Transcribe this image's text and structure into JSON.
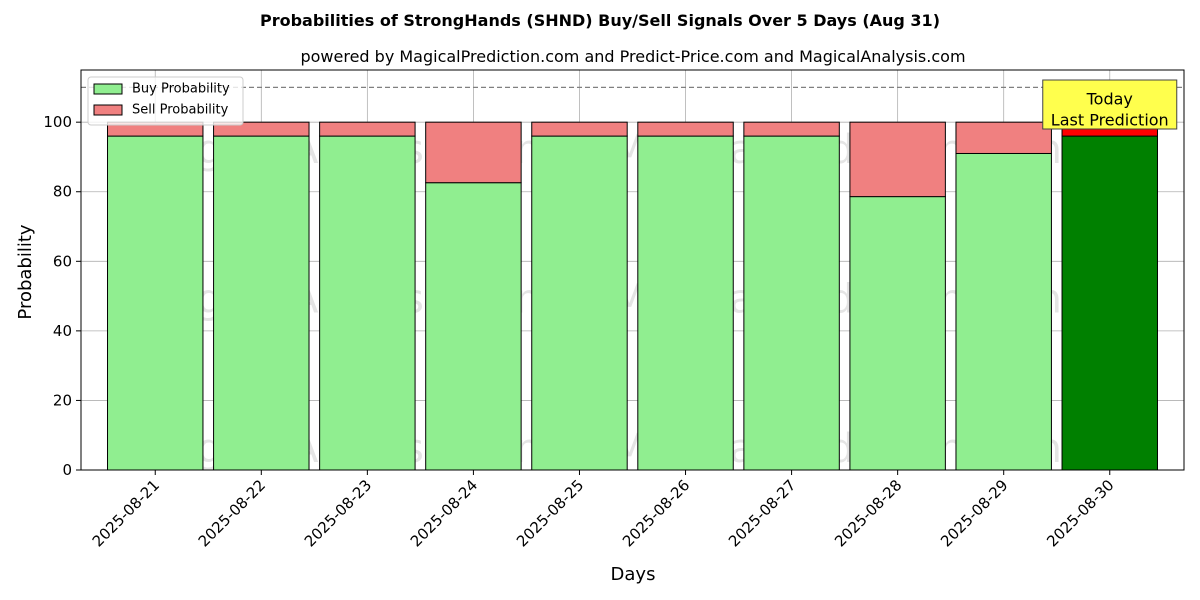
{
  "chart_data": {
    "type": "bar",
    "stacked": true,
    "title": "Probabilities of StrongHands (SHND) Buy/Sell Signals Over 5 Days (Aug 31)",
    "subtitle": "powered by MagicalPrediction.com and Predict-Price.com and MagicalAnalysis.com",
    "xlabel": "Days",
    "ylabel": "Probability",
    "ylim": [
      0,
      115
    ],
    "yticks": [
      0,
      20,
      40,
      60,
      80,
      100
    ],
    "grid": true,
    "legend_position": "top-left",
    "reference_line": 110,
    "categories": [
      "2025-08-21",
      "2025-08-22",
      "2025-08-23",
      "2025-08-24",
      "2025-08-25",
      "2025-08-26",
      "2025-08-27",
      "2025-08-28",
      "2025-08-29",
      "2025-08-30"
    ],
    "series": [
      {
        "name": "Buy Probability",
        "color": "#90ee90",
        "highlight_color": "#008000",
        "values": [
          96,
          96,
          96,
          82.6,
          96,
          96,
          96,
          78.6,
          91,
          96
        ]
      },
      {
        "name": "Sell Probability",
        "color": "#f08080",
        "highlight_color": "#ff0000",
        "values": [
          4,
          4,
          4,
          17.4,
          4,
          4,
          4,
          21.4,
          9,
          4
        ]
      }
    ],
    "highlight_index": 9,
    "annotation": {
      "lines": [
        "Today",
        "Last Prediction"
      ],
      "color": "#ffff4d"
    },
    "watermarks": [
      "MagicalAnalysis.com",
      "MagicalPrediction.com"
    ]
  }
}
